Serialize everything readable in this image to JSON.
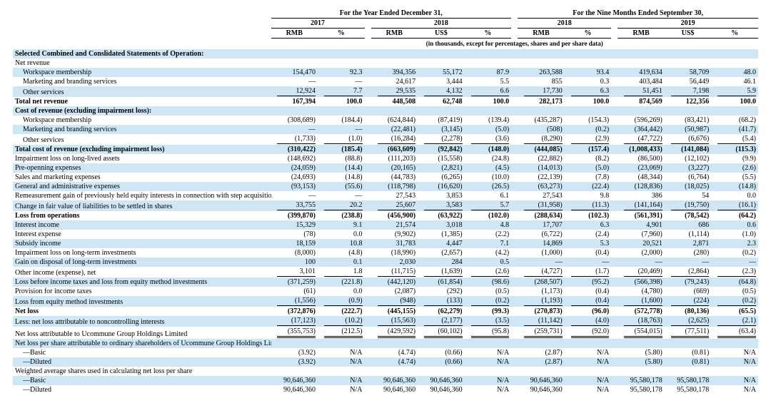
{
  "headers": {
    "period_year": "For the Year Ended December 31,",
    "period_nine": "For the Nine Months Ended September 30,",
    "y2017": "2017",
    "y2018": "2018",
    "y2019": "2019",
    "rmb": "RMB",
    "usd": "US$",
    "pct": "%",
    "units_note": "(in thousands, except for percentages, shares and per share data)"
  },
  "labels": {
    "sel": "Selected Combined and Conslidated Statements of Operation:",
    "net_rev": "Net revenue",
    "ws_mem": "Workspace membership",
    "mkt": "Marketing and branding services",
    "other_svc": "Other services",
    "tot_net_rev": "Total net revenue",
    "cost_rev_h": "Cost of revenue (excluding impairment loss):",
    "tot_cost_rev": "Total cost of revenue (excluding impairment loss)",
    "imp_long": "Impairment loss on long-lived assets",
    "preopen": "Pre-openning expenses",
    "sales_mkt": "Sales and marketing expenses",
    "ga": "General and administrative expenses",
    "remeas": "Remeasurement gain of previously held equity interests in connection with step acquisitions",
    "fv_change": "Change in fair value of liabilities to be settled in shares",
    "loss_ops": "Loss from operations",
    "int_inc": "Interest income",
    "int_exp": "Interest expense",
    "subsidy": "Subsidy income",
    "imp_lt_inv": "Impairment loss on long-term investments",
    "gain_disp": "Gain on disposal of long-term investments",
    "other_inc": "Other income (expense), net",
    "loss_before": "Loss before income taxes and loss from equity method investments",
    "prov_tax": "Provision for income taxes",
    "loss_eq": "Loss from equity method investments",
    "net_loss": "Net loss",
    "less_nci": "Less: net loss attributable to noncontrolling interests",
    "net_loss_att": "Net loss attributable to Ucommune Group Holdings Limited",
    "nlps_h": "Net loss per share attributable to ordinary shareholders of Ucommune Group Holdings Limited",
    "basic": "—Basic",
    "diluted": "—Diluted",
    "wavg_h": "Weighted average shares used in calculating net loss per share"
  },
  "rows": {
    "ws_mem": [
      "154,470",
      "92.3",
      "394,356",
      "55,172",
      "87.9",
      "263,588",
      "93.4",
      "419,634",
      "58,709",
      "48.0"
    ],
    "mkt": [
      "—",
      "—",
      "24,617",
      "3,444",
      "5.5",
      "855",
      "0.3",
      "403,484",
      "56,449",
      "46.1"
    ],
    "other_svc": [
      "12,924",
      "7.7",
      "29,535",
      "4,132",
      "6.6",
      "17,730",
      "6.3",
      "51,451",
      "7,198",
      "5.9"
    ],
    "tot_net_rev": [
      "167,394",
      "100.0",
      "448,508",
      "62,748",
      "100.0",
      "282,173",
      "100.0",
      "874,569",
      "122,356",
      "100.0"
    ],
    "c_ws": [
      "(308,689)",
      "(184.4)",
      "(624,844)",
      "(87,419)",
      "(139.4)",
      "(435,287)",
      "(154.3)",
      "(596,269)",
      "(83,421)",
      "(68.2)"
    ],
    "c_mkt": [
      "—",
      "—",
      "(22,481)",
      "(3,145)",
      "(5.0)",
      "(508)",
      "(0.2)",
      "(364,442)",
      "(50,987)",
      "(41.7)"
    ],
    "c_other": [
      "(1,733)",
      "(1.0)",
      "(16,284)",
      "(2,278)",
      "(3.6)",
      "(8,290)",
      "(2.9)",
      "(47,722)",
      "(6,676)",
      "(5.4)"
    ],
    "tot_cost": [
      "(310,422)",
      "(185.4)",
      "(663,609)",
      "(92,842)",
      "(148.0)",
      "(444,085)",
      "(157.4)",
      "(1,008,433)",
      "(141,084)",
      "(115.3)"
    ],
    "imp_long": [
      "(148,692)",
      "(88.8)",
      "(111,203)",
      "(15,558)",
      "(24.8)",
      "(22,882)",
      "(8.2)",
      "(86,500)",
      "(12,102)",
      "(9.9)"
    ],
    "preopen": [
      "(24,059)",
      "(14.4)",
      "(20,165)",
      "(2,821)",
      "(4.5)",
      "(14,013)",
      "(5.0)",
      "(23,069)",
      "(3,227)",
      "(2.6)"
    ],
    "sales_mkt": [
      "(24,693)",
      "(14.8)",
      "(44,783)",
      "(6,265)",
      "(10.0)",
      "(22,139)",
      "(7.8)",
      "(48,344)",
      "(6,764)",
      "(5.5)"
    ],
    "ga": [
      "(93,153)",
      "(55.6)",
      "(118,798)",
      "(16,620)",
      "(26.5)",
      "(63,273)",
      "(22.4)",
      "(128,836)",
      "(18,025)",
      "(14.8)"
    ],
    "remeas": [
      "—",
      "—",
      "27,543",
      "3,853",
      "6.1",
      "27,543",
      "9.8",
      "386",
      "54",
      "0.0"
    ],
    "fv_change": [
      "33,755",
      "20.2",
      "25,607",
      "3,583",
      "5.7",
      "(31,958)",
      "(11.3)",
      "(141,164)",
      "(19,750)",
      "(16.1)"
    ],
    "loss_ops": [
      "(399,870)",
      "(238.8)",
      "(456,900)",
      "(63,922)",
      "(102.0)",
      "(288,634)",
      "(102.3)",
      "(561,391)",
      "(78,542)",
      "(64.2)"
    ],
    "int_inc": [
      "15,329",
      "9.1",
      "21,574",
      "3,018",
      "4.8",
      "17,707",
      "6.3",
      "4,901",
      "686",
      "0.6"
    ],
    "int_exp": [
      "(78)",
      "0.0",
      "(9,902)",
      "(1,385)",
      "(2.2)",
      "(6,722)",
      "(2.4)",
      "(7,960)",
      "(1,114)",
      "(1.0)"
    ],
    "subsidy": [
      "18,159",
      "10.8",
      "31,783",
      "4,447",
      "7.1",
      "14,869",
      "5.3",
      "20,521",
      "2,871",
      "2.3"
    ],
    "imp_lt_inv": [
      "(8,000)",
      "(4.8)",
      "(18,990)",
      "(2,657)",
      "(4.2)",
      "(1,000)",
      "(0.4)",
      "(2,000)",
      "(280)",
      "(0.2)"
    ],
    "gain_disp": [
      "100",
      "0.1",
      "2,030",
      "284",
      "0.5",
      "—",
      "—",
      "—",
      "—",
      "—"
    ],
    "other_inc": [
      "3,101",
      "1.8",
      "(11,715)",
      "(1,639)",
      "(2.6)",
      "(4,727)",
      "(1.7)",
      "(20,469)",
      "(2,864)",
      "(2.3)"
    ],
    "loss_before": [
      "(371,259)",
      "(221.8)",
      "(442,120)",
      "(61,854)",
      "(98.6)",
      "(268,507)",
      "(95.2)",
      "(566,398)",
      "(79,243)",
      "(64.8)"
    ],
    "prov_tax": [
      "(61)",
      "0.0",
      "(2,087)",
      "(292)",
      "(0.5)",
      "(1,173)",
      "(0.4)",
      "(4,780)",
      "(669)",
      "(0.5)"
    ],
    "loss_eq": [
      "(1,556)",
      "(0.9)",
      "(948)",
      "(133)",
      "(0.2)",
      "(1,193)",
      "(0.4)",
      "(1,600)",
      "(224)",
      "(0.2)"
    ],
    "net_loss": [
      "(372,876)",
      "(222.7)",
      "(445,155)",
      "(62,279)",
      "(99.3)",
      "(270,873)",
      "(96.0)",
      "(572,778)",
      "(80,136)",
      "(65.5)"
    ],
    "less_nci": [
      "(17,123)",
      "(10.2)",
      "(15,563)",
      "(2,177)",
      "(3.5)",
      "(11,142)",
      "(4.0)",
      "(18,763)",
      "(2,625)",
      "(2.1)"
    ],
    "net_loss_att": [
      "(355,753)",
      "(212.5)",
      "(429,592)",
      "(60,102)",
      "(95.8)",
      "(259,731)",
      "(92.0)",
      "(554,015)",
      "(77,511)",
      "(63.4)"
    ],
    "eps_basic": [
      "(3.92)",
      "N/A",
      "(4.74)",
      "(0.66)",
      "N/A",
      "(2.87)",
      "N/A",
      "(5.80)",
      "(0.81)",
      "N/A"
    ],
    "eps_diluted": [
      "(3.92)",
      "N/A",
      "(4.74)",
      "(0.66)",
      "N/A",
      "(2.87)",
      "N/A",
      "(5.80)",
      "(0.81)",
      "N/A"
    ],
    "sh_basic": [
      "90,646,360",
      "N/A",
      "90,646,360",
      "90,646,360",
      "N/A",
      "90,646,360",
      "N/A",
      "95,580,178",
      "95,580,178",
      "N/A"
    ],
    "sh_diluted": [
      "90,646,360",
      "N/A",
      "90,646,360",
      "90,646,360",
      "N/A",
      "90,646,360",
      "N/A",
      "95,580,178",
      "95,580,178",
      "N/A"
    ]
  }
}
